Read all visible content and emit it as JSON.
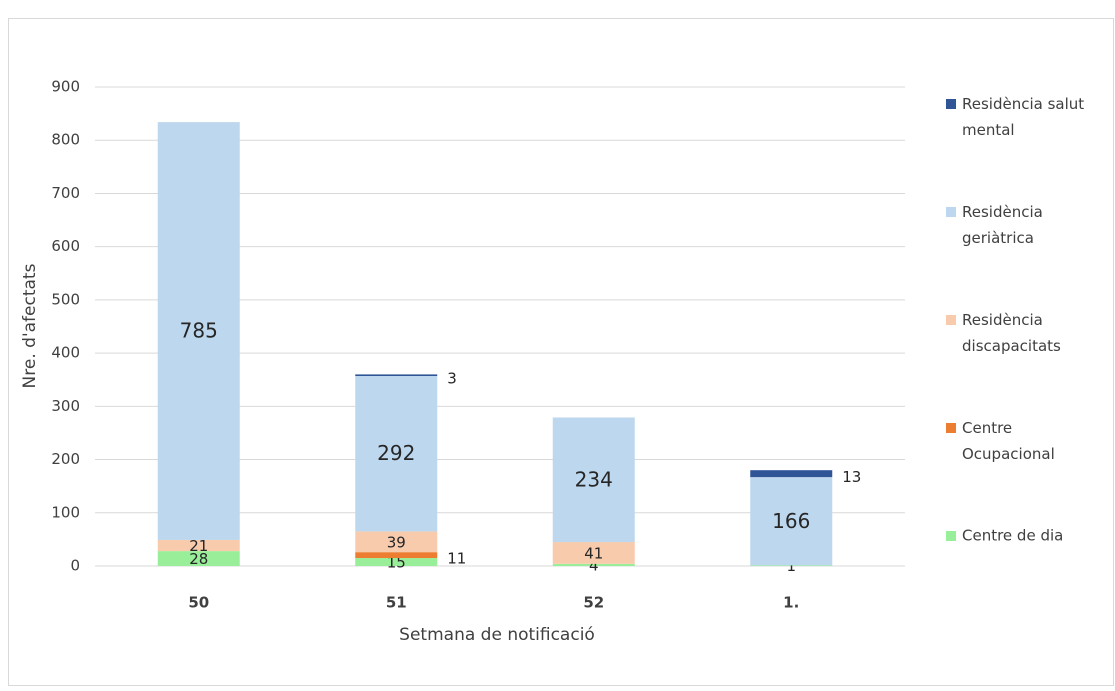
{
  "chart_data": {
    "type": "bar",
    "stacked": true,
    "y_label": "Nre. d'afectats",
    "x_label": "Setmana de notificació",
    "categories": [
      "50",
      "51",
      "52",
      "1."
    ],
    "series": [
      {
        "name": "Centre de dia",
        "color": "#99ee99",
        "values": [
          28,
          15,
          4,
          1
        ]
      },
      {
        "name": "Centre Ocupacional",
        "color": "#ed7d31",
        "values": [
          null,
          11,
          null,
          null
        ]
      },
      {
        "name": "Residència discapacitats",
        "color": "#f8cbad",
        "values": [
          21,
          39,
          41,
          null
        ]
      },
      {
        "name": "Residència geriàtrica",
        "color": "#bdd7ee",
        "values": [
          785,
          292,
          234,
          166
        ]
      },
      {
        "name": "Residència salut mental",
        "color": "#2f5597",
        "values": [
          null,
          3,
          null,
          13
        ]
      }
    ],
    "ylim": [
      0,
      900
    ],
    "yticks": [
      0,
      100,
      200,
      300,
      400,
      500,
      600,
      700,
      800,
      900
    ],
    "grid": true,
    "legend": "right"
  }
}
